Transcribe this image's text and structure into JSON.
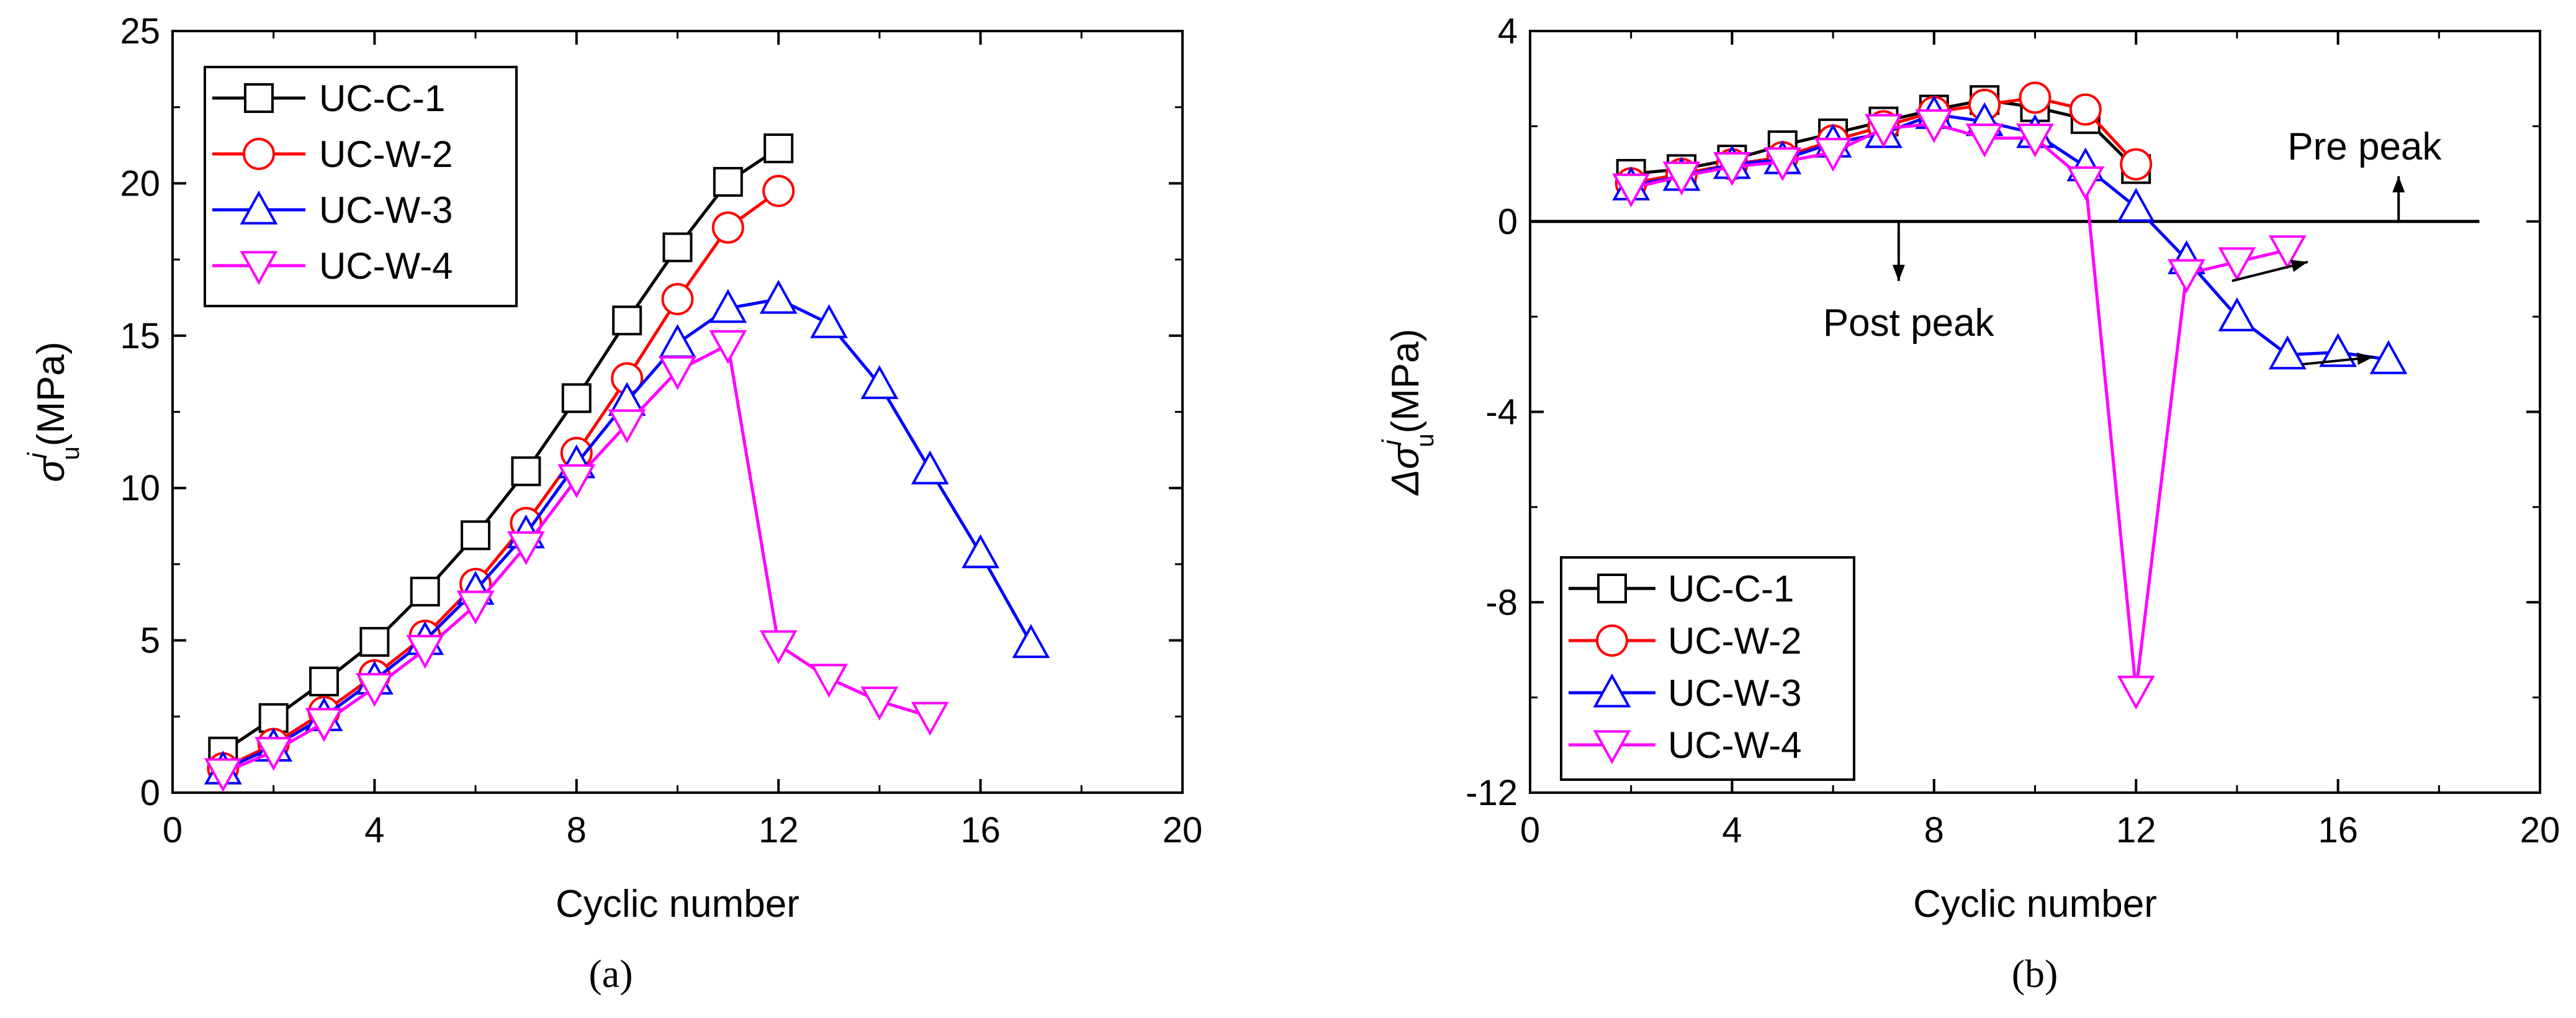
{
  "chart_data": [
    {
      "type": "line",
      "panel_label": "(a)",
      "xlabel": "Cyclic number",
      "ylabel_symbol": "σ",
      "ylabel_sup": "i",
      "ylabel_sub": "u",
      "ylabel_unit": "(MPa)",
      "xlim": [
        0,
        20
      ],
      "ylim": [
        0,
        25
      ],
      "xticks": [
        0,
        4,
        8,
        12,
        16,
        20
      ],
      "yticks": [
        0,
        5,
        10,
        15,
        20,
        25
      ],
      "legend_position": "top-left",
      "series": [
        {
          "name": "UC-C-1",
          "color": "#000000",
          "marker": "square",
          "x": [
            1,
            2,
            3,
            4,
            5,
            6,
            7,
            8,
            9,
            10,
            11,
            12
          ],
          "y": [
            1.35,
            2.45,
            3.65,
            4.95,
            6.6,
            8.45,
            10.55,
            12.95,
            15.5,
            17.9,
            20.05,
            21.15
          ]
        },
        {
          "name": "UC-W-2",
          "color": "#ff0000",
          "marker": "circle",
          "x": [
            1,
            2,
            3,
            4,
            5,
            6,
            7,
            8,
            9,
            10,
            11,
            12
          ],
          "y": [
            0.8,
            1.6,
            2.65,
            3.85,
            5.15,
            6.85,
            8.85,
            11.15,
            13.6,
            16.2,
            18.55,
            19.75
          ]
        },
        {
          "name": "UC-W-3",
          "color": "#0000ff",
          "marker": "triangle-up",
          "x": [
            1,
            2,
            3,
            4,
            5,
            6,
            7,
            8,
            9,
            10,
            11,
            12,
            13,
            14,
            15,
            16,
            17
          ],
          "y": [
            0.75,
            1.5,
            2.5,
            3.7,
            5.0,
            6.65,
            8.5,
            10.8,
            12.85,
            14.75,
            15.9,
            16.2,
            15.4,
            13.4,
            10.6,
            7.85,
            4.9
          ]
        },
        {
          "name": "UC-W-4",
          "color": "#ff00ff",
          "marker": "triangle-down",
          "x": [
            1,
            2,
            3,
            4,
            5,
            6,
            7,
            8,
            9,
            10,
            11,
            12,
            13,
            14,
            15
          ],
          "y": [
            0.65,
            1.35,
            2.3,
            3.45,
            4.7,
            6.15,
            8.1,
            10.3,
            12.1,
            13.85,
            14.7,
            4.85,
            3.75,
            3.0,
            2.5
          ]
        }
      ]
    },
    {
      "type": "line",
      "panel_label": "(b)",
      "xlabel": "Cyclic number",
      "ylabel_symbol": "Δσ",
      "ylabel_sup": "i",
      "ylabel_sub": "u",
      "ylabel_unit": "(MPa)",
      "xlim": [
        0,
        20
      ],
      "ylim": [
        -12,
        4
      ],
      "xticks": [
        0,
        4,
        8,
        12,
        16,
        20
      ],
      "yticks": [
        -12,
        -8,
        -4,
        0,
        4
      ],
      "legend_position": "bottom-left",
      "annotations": {
        "pre_peak": "Pre peak",
        "post_peak": "Post peak"
      },
      "series": [
        {
          "name": "UC-C-1",
          "color": "#000000",
          "marker": "square",
          "x": [
            2,
            3,
            4,
            5,
            6,
            7,
            8,
            9,
            10,
            11,
            12
          ],
          "y": [
            1.0,
            1.1,
            1.3,
            1.6,
            1.85,
            2.1,
            2.35,
            2.55,
            2.4,
            2.15,
            1.1
          ]
        },
        {
          "name": "UC-W-2",
          "color": "#ff0000",
          "marker": "circle",
          "x": [
            2,
            3,
            4,
            5,
            6,
            7,
            8,
            9,
            10,
            11,
            12
          ],
          "y": [
            0.8,
            1.0,
            1.2,
            1.35,
            1.7,
            2.0,
            2.3,
            2.45,
            2.6,
            2.35,
            1.2
          ]
        },
        {
          "name": "UC-W-3",
          "color": "#0000ff",
          "marker": "triangle-up",
          "x": [
            2,
            3,
            4,
            5,
            6,
            7,
            8,
            9,
            10,
            11,
            12,
            13,
            14,
            15,
            16,
            17
          ],
          "y": [
            0.75,
            0.95,
            1.2,
            1.3,
            1.65,
            1.85,
            2.25,
            2.1,
            1.85,
            1.15,
            0.3,
            -0.8,
            -2.0,
            -2.8,
            -2.75,
            -2.9
          ]
        },
        {
          "name": "UC-W-4",
          "color": "#ff00ff",
          "marker": "triangle-down",
          "x": [
            2,
            3,
            4,
            5,
            6,
            7,
            8,
            9,
            10,
            11,
            12,
            13,
            14,
            15
          ],
          "y": [
            0.7,
            0.95,
            1.15,
            1.25,
            1.45,
            1.95,
            2.05,
            1.75,
            1.75,
            0.85,
            -9.85,
            -1.1,
            -0.85,
            -0.6
          ]
        }
      ]
    }
  ]
}
